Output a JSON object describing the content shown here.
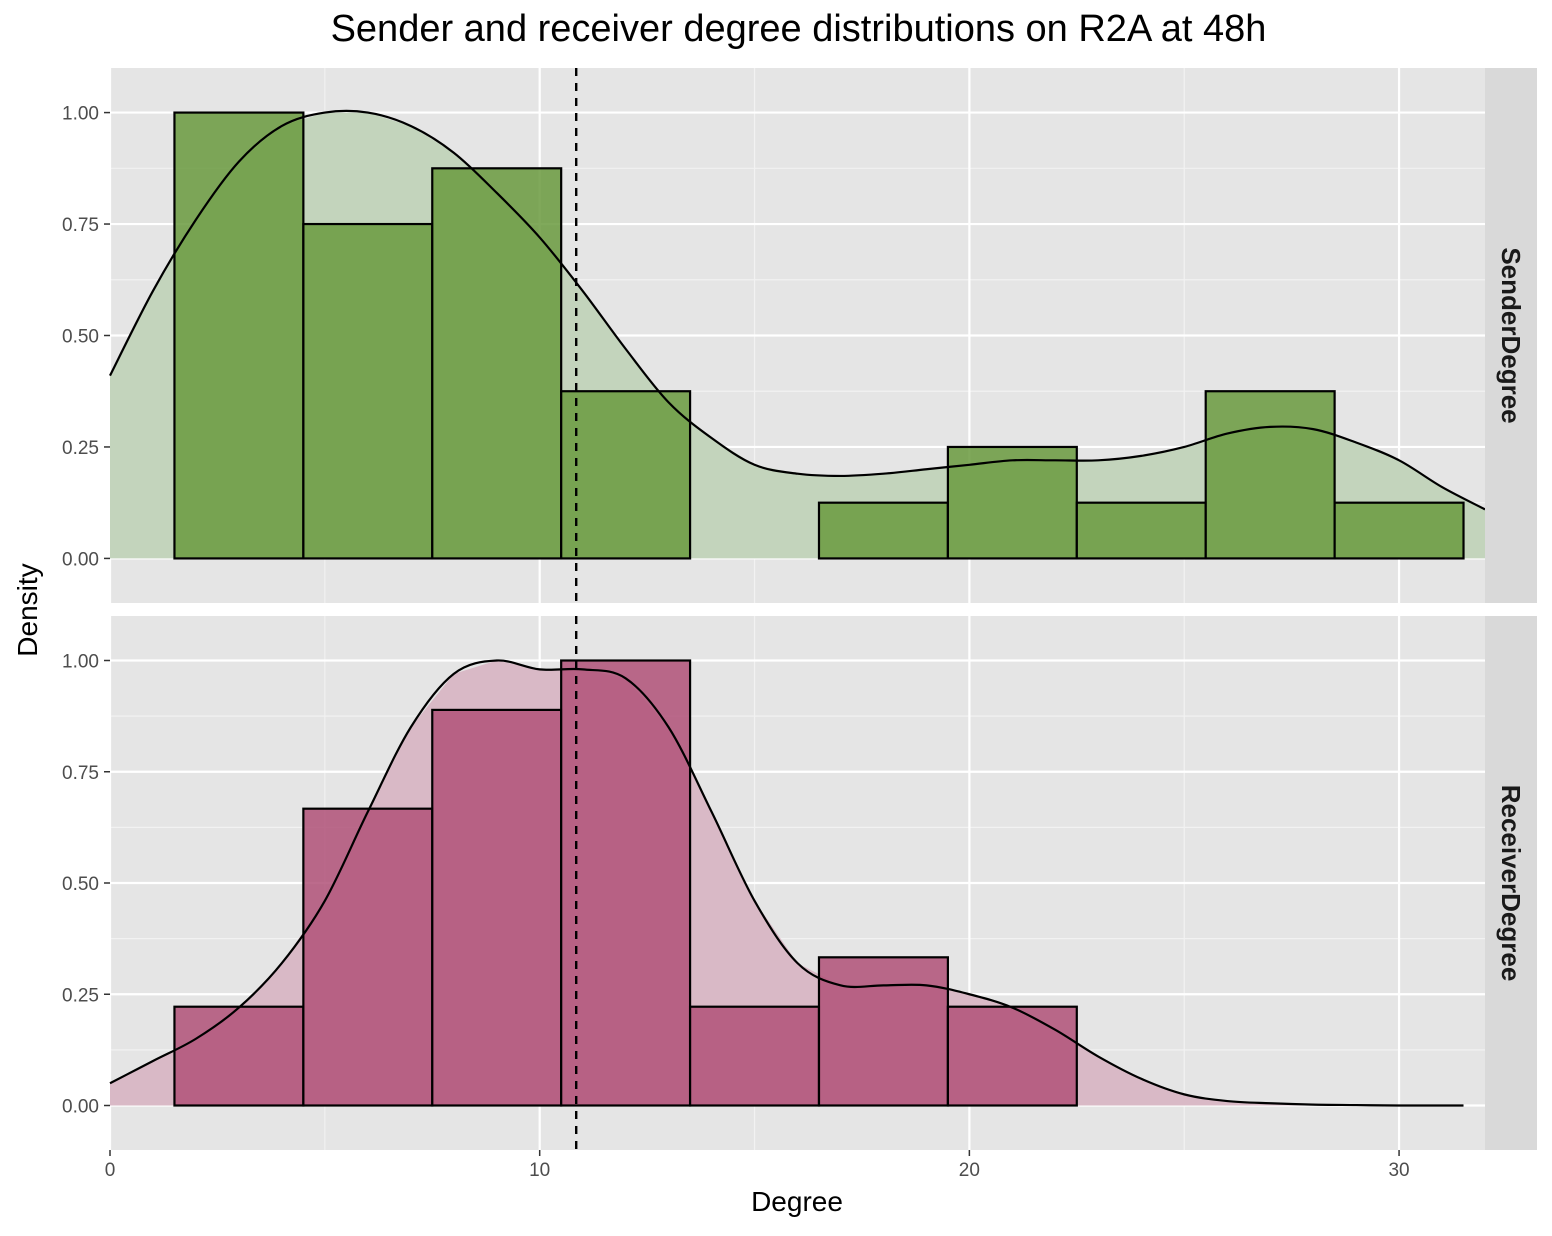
{
  "chart_data": {
    "type": "histogram",
    "title": "Sender and receiver degree distributions on R2A at 48h",
    "xlabel": "Degree",
    "ylabel": "Density",
    "xlim": [
      0,
      32
    ],
    "ylim": [
      -0.1,
      1.1
    ],
    "x_ticks": [
      0,
      10,
      20,
      30
    ],
    "y_ticks": [
      "0.00",
      "0.25",
      "0.50",
      "0.75",
      "1.00"
    ],
    "grid": true,
    "mean_line": {
      "x": 10.85,
      "style": "dashed"
    },
    "bin_width": 3,
    "panels": [
      {
        "name": "SenderDegree",
        "color": "#6a9a3e",
        "density_color": "#c3d4bc",
        "bins": [
          {
            "x0": 1.5,
            "x1": 4.5,
            "density": 1.0
          },
          {
            "x0": 4.5,
            "x1": 7.5,
            "density": 0.75
          },
          {
            "x0": 7.5,
            "x1": 10.5,
            "density": 0.875
          },
          {
            "x0": 10.5,
            "x1": 13.5,
            "density": 0.375
          },
          {
            "x0": 16.5,
            "x1": 19.5,
            "density": 0.125
          },
          {
            "x0": 19.5,
            "x1": 22.5,
            "density": 0.25
          },
          {
            "x0": 22.5,
            "x1": 25.5,
            "density": 0.125
          },
          {
            "x0": 25.5,
            "x1": 28.5,
            "density": 0.375
          },
          {
            "x0": 28.5,
            "x1": 31.5,
            "density": 0.125
          }
        ],
        "density_curve": [
          [
            0,
            0.41
          ],
          [
            1,
            0.6
          ],
          [
            2,
            0.76
          ],
          [
            3,
            0.89
          ],
          [
            4,
            0.97
          ],
          [
            5,
            1.0
          ],
          [
            6,
            1.0
          ],
          [
            7,
            0.97
          ],
          [
            8,
            0.91
          ],
          [
            9,
            0.82
          ],
          [
            10,
            0.72
          ],
          [
            11,
            0.6
          ],
          [
            12,
            0.47
          ],
          [
            13,
            0.35
          ],
          [
            14,
            0.27
          ],
          [
            15,
            0.21
          ],
          [
            16,
            0.19
          ],
          [
            17,
            0.185
          ],
          [
            18,
            0.19
          ],
          [
            19,
            0.2
          ],
          [
            20,
            0.21
          ],
          [
            21,
            0.22
          ],
          [
            22,
            0.22
          ],
          [
            23,
            0.22
          ],
          [
            24,
            0.23
          ],
          [
            25,
            0.25
          ],
          [
            26,
            0.28
          ],
          [
            27,
            0.295
          ],
          [
            28,
            0.29
          ],
          [
            29,
            0.26
          ],
          [
            30,
            0.22
          ],
          [
            31,
            0.16
          ],
          [
            32,
            0.11
          ]
        ]
      },
      {
        "name": "ReceiverDegree",
        "color": "#b05178",
        "density_color": "#d9b9c6",
        "bins": [
          {
            "x0": 1.5,
            "x1": 4.5,
            "density": 0.222
          },
          {
            "x0": 4.5,
            "x1": 7.5,
            "density": 0.667
          },
          {
            "x0": 7.5,
            "x1": 10.5,
            "density": 0.889
          },
          {
            "x0": 10.5,
            "x1": 13.5,
            "density": 1.0
          },
          {
            "x0": 13.5,
            "x1": 16.5,
            "density": 0.222
          },
          {
            "x0": 16.5,
            "x1": 19.5,
            "density": 0.333
          },
          {
            "x0": 19.5,
            "x1": 22.5,
            "density": 0.222
          }
        ],
        "density_curve": [
          [
            0,
            0.05
          ],
          [
            1,
            0.1
          ],
          [
            2,
            0.15
          ],
          [
            3,
            0.22
          ],
          [
            4,
            0.32
          ],
          [
            5,
            0.46
          ],
          [
            6,
            0.66
          ],
          [
            7,
            0.85
          ],
          [
            8,
            0.97
          ],
          [
            9,
            1.0
          ],
          [
            10,
            0.98
          ],
          [
            11,
            0.98
          ],
          [
            12,
            0.96
          ],
          [
            13,
            0.85
          ],
          [
            14,
            0.66
          ],
          [
            15,
            0.46
          ],
          [
            16,
            0.32
          ],
          [
            17,
            0.27
          ],
          [
            18,
            0.27
          ],
          [
            19,
            0.27
          ],
          [
            20,
            0.25
          ],
          [
            21,
            0.22
          ],
          [
            22,
            0.17
          ],
          [
            23,
            0.11
          ],
          [
            24,
            0.06
          ],
          [
            25,
            0.025
          ],
          [
            26,
            0.01
          ],
          [
            27,
            0.005
          ],
          [
            28,
            0.002
          ],
          [
            29,
            0.001
          ],
          [
            30,
            0.0
          ],
          [
            31.5,
            0.0
          ]
        ]
      }
    ]
  }
}
